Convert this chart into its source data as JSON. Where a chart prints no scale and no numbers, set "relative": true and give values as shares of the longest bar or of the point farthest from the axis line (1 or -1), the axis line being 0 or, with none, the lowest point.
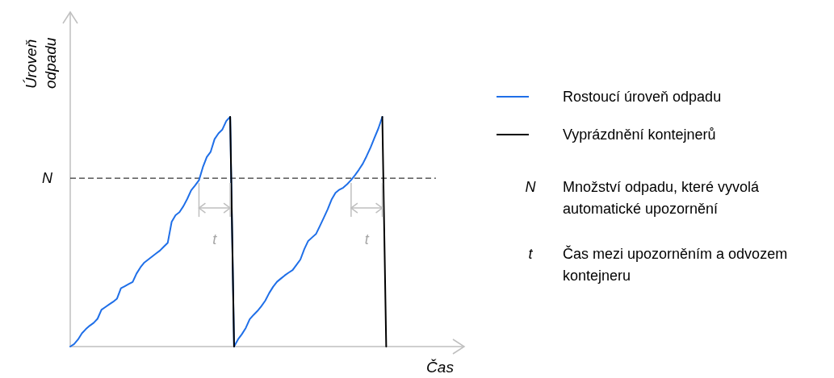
{
  "chart_data": {
    "type": "line",
    "relative": true,
    "xlabel": "Čas",
    "ylabel": "Úroveň odpadu",
    "legend": "right",
    "marker": "none",
    "categories": [
      null,
      null,
      null,
      null,
      null,
      null,
      null,
      null,
      null,
      null,
      null,
      null,
      null,
      null,
      null,
      null,
      null,
      null,
      null,
      null,
      null,
      null,
      null,
      null,
      null,
      null,
      null,
      null,
      null,
      null,
      null,
      null,
      null,
      null,
      null,
      null,
      null,
      null,
      null,
      null,
      null,
      null,
      null,
      null,
      null,
      null,
      null,
      null,
      null,
      null,
      null,
      null,
      null,
      null,
      null,
      null,
      null,
      null,
      null,
      null,
      null,
      null,
      null,
      null,
      null,
      null,
      null,
      null,
      null,
      null,
      null,
      null,
      null,
      null,
      null,
      null,
      null,
      null,
      null,
      null,
      null,
      null,
      null,
      null,
      null,
      null,
      null,
      null,
      null,
      null,
      null,
      null,
      null,
      null,
      null,
      null,
      null,
      null,
      null,
      null,
      null
    ],
    "series": [
      {
        "name": "Rostoucí úroveň odpadu",
        "color": "#1f6fe8",
        "values": [
          0,
          0.011,
          0.031,
          0.058,
          0.076,
          0.091,
          0.103,
          0.121,
          0.16,
          0.172,
          0.184,
          0.195,
          0.209,
          0.254,
          0.263,
          0.272,
          0.281,
          0.318,
          0.345,
          0.366,
          0.379,
          0.392,
          0.405,
          0.418,
          0.435,
          0.452,
          0.543,
          0.572,
          0.585,
          0.611,
          0.643,
          0.68,
          0.701,
          0.724,
          0.781,
          0.825,
          0.848,
          0.903,
          0.928,
          0.945,
          0.982,
          1,
          0,
          0.031,
          0.054,
          0.081,
          0.119,
          0.138,
          0.155,
          0.176,
          0.2,
          0.233,
          0.26,
          0.282,
          0.296,
          0.31,
          0.322,
          0.333,
          0.356,
          0.379,
          0.424,
          0.46,
          0.475,
          0.49,
          0.525,
          0.561,
          0.598,
          0.64,
          0.669,
          0.683,
          0.692,
          0.707,
          0.725,
          0.746,
          0.77,
          0.796,
          0.83,
          0.867,
          0.909,
          0.95,
          1,
          null,
          null,
          null,
          null,
          null,
          null,
          null,
          null,
          null,
          null,
          null,
          null,
          null,
          null,
          null,
          null,
          null,
          null,
          null,
          null
        ]
      },
      {
        "name": "Vyprázdnění kontejnerů",
        "color": "#000000",
        "values": [
          null,
          null,
          null,
          null,
          null,
          null,
          null,
          null,
          null,
          null,
          null,
          null,
          null,
          null,
          null,
          null,
          null,
          null,
          null,
          null,
          null,
          null,
          null,
          null,
          null,
          null,
          null,
          null,
          null,
          null,
          null,
          null,
          null,
          null,
          null,
          null,
          null,
          null,
          null,
          null,
          null,
          1,
          0,
          null,
          null,
          null,
          null,
          null,
          null,
          null,
          null,
          null,
          null,
          null,
          null,
          null,
          null,
          null,
          null,
          null,
          null,
          null,
          null,
          null,
          null,
          null,
          null,
          null,
          null,
          null,
          null,
          null,
          null,
          null,
          null,
          null,
          null,
          null,
          null,
          null,
          1,
          0,
          null,
          null,
          null,
          null,
          null,
          null,
          null,
          null,
          null,
          null,
          null,
          null,
          null,
          null,
          null,
          null,
          null,
          null,
          null
        ]
      }
    ],
    "ref_lines": [
      {
        "axis": "y",
        "value": 0.733,
        "label": "N",
        "color": "#000000",
        "line_style": "dashed"
      }
    ],
    "annotations": [
      "t",
      "t",
      "N",
      "Množství odpadu, které vyvolá automatické upozornění",
      "t",
      "Čas mezi upozorněním a odvozem kontejneru"
    ]
  }
}
